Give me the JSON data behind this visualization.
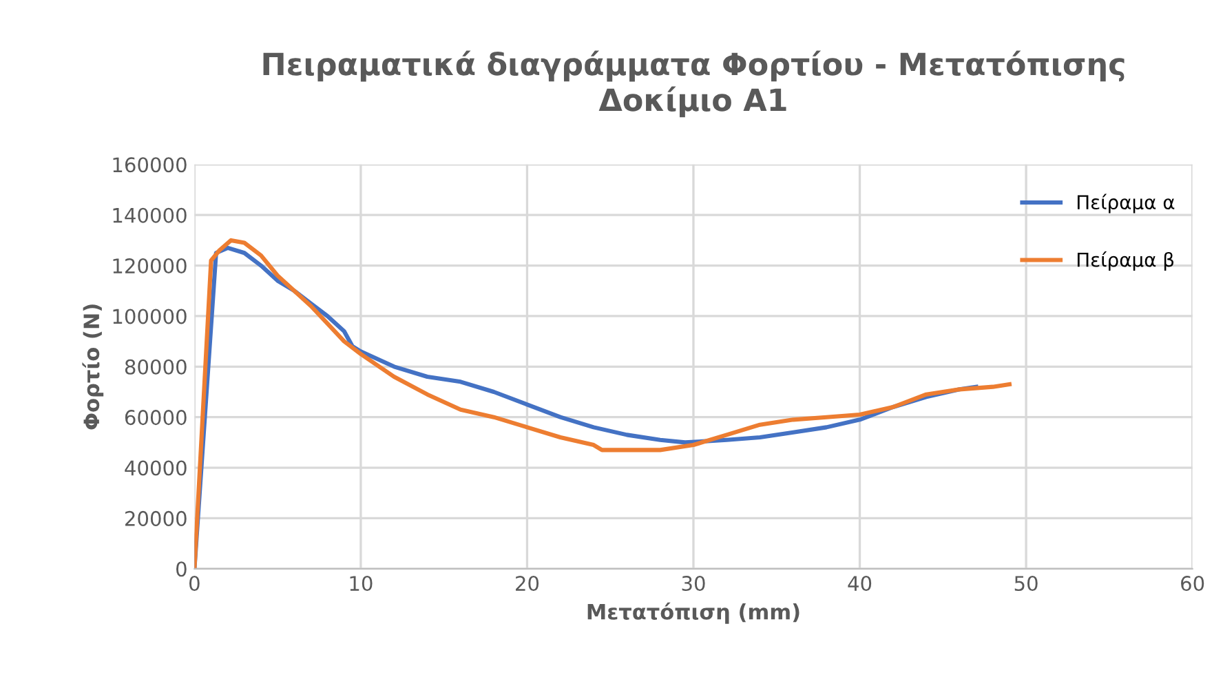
{
  "chart_data": {
    "type": "line",
    "title": "Πειραματικά διαγράμματα Φορτίου - Μετατόπισης\nΔοκίμιο Α1",
    "xlabel": "Μετατόπιση (mm)",
    "ylabel": "Φορτίο (N)",
    "series": [
      {
        "name": "Πείραμα α",
        "color": "#4472c4",
        "x": [
          0,
          1.3,
          2,
          3,
          4,
          5,
          6,
          7,
          8,
          9,
          9.5,
          10,
          12,
          14,
          16,
          18,
          20,
          22,
          24,
          26,
          28,
          29.5,
          32,
          34,
          36,
          38,
          40,
          42,
          44,
          46,
          47
        ],
        "values": [
          0,
          125000,
          127000,
          125000,
          120000,
          114000,
          110000,
          105000,
          100000,
          94000,
          88000,
          86000,
          80000,
          76000,
          74000,
          70000,
          65000,
          60000,
          56000,
          53000,
          51000,
          50000,
          51000,
          52000,
          54000,
          56000,
          59000,
          64000,
          68000,
          71000,
          72000
        ]
      },
      {
        "name": "Πείραμα β",
        "color": "#ed7d31",
        "x": [
          0,
          1,
          1.5,
          2.2,
          3,
          4,
          5,
          6,
          7,
          8,
          9,
          10,
          12,
          14,
          16,
          18,
          20,
          22,
          24,
          24.5,
          26,
          28,
          30,
          32,
          34,
          36,
          38,
          40,
          42,
          44,
          46,
          48,
          49
        ],
        "values": [
          0,
          122000,
          126000,
          130000,
          129000,
          124000,
          116000,
          110000,
          104000,
          97000,
          90000,
          85000,
          76000,
          69000,
          63000,
          60000,
          56000,
          52000,
          49000,
          47000,
          47000,
          47000,
          49000,
          53000,
          57000,
          59000,
          60000,
          61000,
          64000,
          69000,
          71000,
          72000,
          73000
        ]
      }
    ],
    "xlim": [
      0,
      60
    ],
    "xticks": [
      0,
      10,
      20,
      30,
      40,
      50,
      60
    ],
    "ylim": [
      0,
      160000
    ],
    "yticks": [
      0,
      20000,
      40000,
      60000,
      80000,
      100000,
      120000,
      140000,
      160000
    ],
    "grid": true,
    "legend": "top right",
    "marker": "none",
    "line_style": "solid"
  }
}
